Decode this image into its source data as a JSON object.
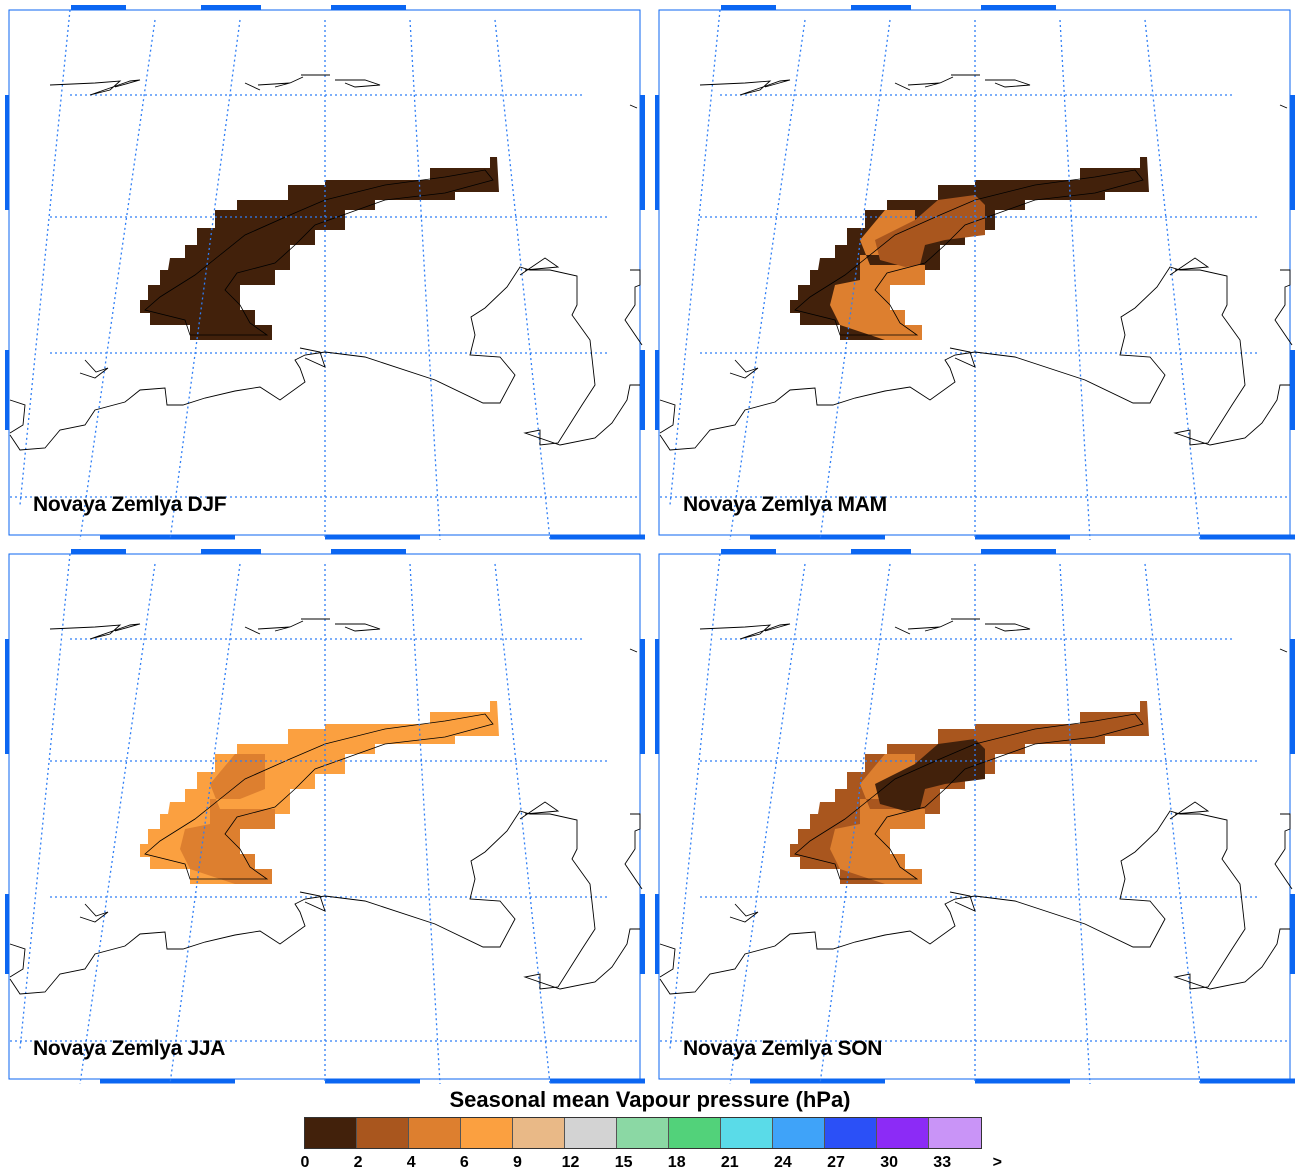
{
  "panels": [
    {
      "title": "Novaya Zemlya DJF",
      "base_category": 0,
      "patches": []
    },
    {
      "title": "Novaya Zemlya MAM",
      "base_category": 0,
      "patches": [
        2,
        1
      ]
    },
    {
      "title": "Novaya Zemlya JJA",
      "base_category": 3,
      "patches": [
        2
      ]
    },
    {
      "title": "Novaya Zemlya SON",
      "base_category": 1,
      "patches": [
        2,
        0
      ]
    }
  ],
  "legend": {
    "title": "Seasonal mean Vapour pressure (hPa)",
    "ticks": [
      "0",
      "2",
      "4",
      "6",
      "9",
      "12",
      "15",
      "18",
      "21",
      "24",
      "27",
      "30",
      "33",
      ">"
    ],
    "colors": [
      "#42210b",
      "#a9561e",
      "#dd7f2f",
      "#fba040",
      "#e9b987",
      "#d3d3d3",
      "#8bd8a4",
      "#52d27a",
      "#5adbe8",
      "#3fa3f9",
      "#2b50f7",
      "#8c2bf6",
      "#c994f7"
    ]
  },
  "style": {
    "grid_color": "#2f7ef5",
    "frame_color": "#0b66f2",
    "coast_color": "#000000"
  }
}
